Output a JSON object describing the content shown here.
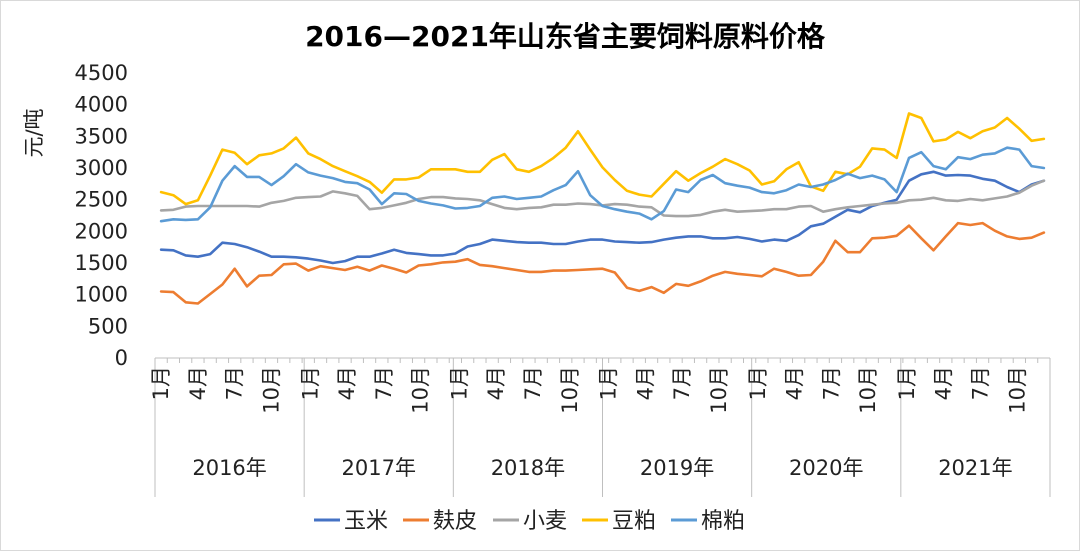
{
  "chart_data": {
    "type": "line",
    "title": "2016—2021年山东省主要饲料原料价格",
    "ylabel": "元/吨",
    "xlabel": "",
    "ylim": [
      0,
      4500
    ],
    "yticks": [
      0,
      500,
      1000,
      1500,
      2000,
      2500,
      3000,
      3500,
      4000,
      4500
    ],
    "grid": false,
    "legend_position": "bottom",
    "years": [
      "2016年",
      "2017年",
      "2018年",
      "2019年",
      "2020年",
      "2021年"
    ],
    "month_tick_labels": [
      "1月",
      "4月",
      "7月",
      "10月"
    ],
    "colors": {
      "玉米": "#4472c4",
      "麸皮": "#ed7d31",
      "小麦": "#a5a5a5",
      "豆粕": "#ffc000",
      "棉粕": "#5b9bd5"
    },
    "series": [
      {
        "name": "玉米",
        "values": [
          1710,
          1700,
          1620,
          1600,
          1640,
          1820,
          1800,
          1750,
          1680,
          1600,
          1600,
          1590,
          1570,
          1540,
          1500,
          1530,
          1600,
          1600,
          1650,
          1710,
          1660,
          1640,
          1620,
          1620,
          1650,
          1760,
          1800,
          1870,
          1850,
          1830,
          1820,
          1820,
          1800,
          1800,
          1840,
          1870,
          1870,
          1840,
          1830,
          1820,
          1830,
          1870,
          1900,
          1920,
          1920,
          1890,
          1890,
          1910,
          1880,
          1840,
          1870,
          1850,
          1940,
          2080,
          2120,
          2230,
          2340,
          2300,
          2400,
          2450,
          2500,
          2800,
          2900,
          2940,
          2880,
          2890,
          2880,
          2830,
          2800,
          2700,
          2620,
          2740,
          2800
        ]
      },
      {
        "name": "麸皮",
        "values": [
          1050,
          1040,
          880,
          860,
          1010,
          1160,
          1410,
          1130,
          1300,
          1310,
          1480,
          1490,
          1380,
          1450,
          1420,
          1390,
          1440,
          1380,
          1460,
          1410,
          1350,
          1460,
          1480,
          1510,
          1520,
          1560,
          1470,
          1450,
          1420,
          1390,
          1360,
          1360,
          1380,
          1380,
          1390,
          1400,
          1410,
          1350,
          1110,
          1060,
          1120,
          1030,
          1170,
          1140,
          1210,
          1300,
          1360,
          1330,
          1310,
          1290,
          1410,
          1360,
          1300,
          1310,
          1520,
          1850,
          1670,
          1670,
          1890,
          1900,
          1930,
          2090,
          1890,
          1700,
          1920,
          2130,
          2100,
          2130,
          2010,
          1920,
          1880,
          1900,
          1980
        ]
      },
      {
        "name": "小麦",
        "values": [
          2330,
          2340,
          2390,
          2400,
          2400,
          2400,
          2400,
          2400,
          2390,
          2450,
          2480,
          2530,
          2540,
          2550,
          2630,
          2600,
          2560,
          2350,
          2370,
          2410,
          2450,
          2510,
          2540,
          2540,
          2520,
          2510,
          2490,
          2430,
          2370,
          2350,
          2370,
          2380,
          2420,
          2420,
          2440,
          2430,
          2410,
          2430,
          2420,
          2390,
          2380,
          2250,
          2240,
          2240,
          2260,
          2310,
          2340,
          2310,
          2320,
          2330,
          2350,
          2350,
          2390,
          2400,
          2310,
          2350,
          2380,
          2400,
          2420,
          2440,
          2450,
          2490,
          2500,
          2530,
          2490,
          2480,
          2510,
          2490,
          2520,
          2550,
          2610,
          2720,
          2800
        ]
      },
      {
        "name": "豆粕",
        "values": [
          2620,
          2570,
          2430,
          2490,
          2880,
          3290,
          3240,
          3060,
          3200,
          3230,
          3310,
          3480,
          3230,
          3140,
          3030,
          2950,
          2870,
          2780,
          2610,
          2820,
          2820,
          2850,
          2980,
          2980,
          2980,
          2940,
          2940,
          3130,
          3220,
          2980,
          2940,
          3030,
          3160,
          3320,
          3580,
          3290,
          3010,
          2810,
          2640,
          2580,
          2550,
          2750,
          2950,
          2800,
          2920,
          3020,
          3140,
          3060,
          2960,
          2740,
          2790,
          2980,
          3090,
          2710,
          2640,
          2940,
          2900,
          3020,
          3310,
          3290,
          3160,
          3860,
          3790,
          3420,
          3450,
          3570,
          3470,
          3580,
          3640,
          3790,
          3620,
          3430,
          3460
        ]
      },
      {
        "name": "棉粕",
        "values": [
          2160,
          2190,
          2180,
          2190,
          2380,
          2800,
          3030,
          2860,
          2860,
          2730,
          2870,
          3060,
          2930,
          2880,
          2840,
          2780,
          2760,
          2660,
          2430,
          2600,
          2590,
          2480,
          2440,
          2410,
          2360,
          2370,
          2400,
          2530,
          2550,
          2510,
          2530,
          2550,
          2650,
          2730,
          2950,
          2570,
          2400,
          2350,
          2310,
          2280,
          2190,
          2320,
          2660,
          2620,
          2810,
          2890,
          2760,
          2720,
          2690,
          2620,
          2600,
          2650,
          2740,
          2700,
          2740,
          2810,
          2910,
          2840,
          2880,
          2820,
          2620,
          3160,
          3250,
          3030,
          2980,
          3170,
          3140,
          3210,
          3230,
          3320,
          3290,
          3030,
          3000
        ]
      }
    ]
  }
}
